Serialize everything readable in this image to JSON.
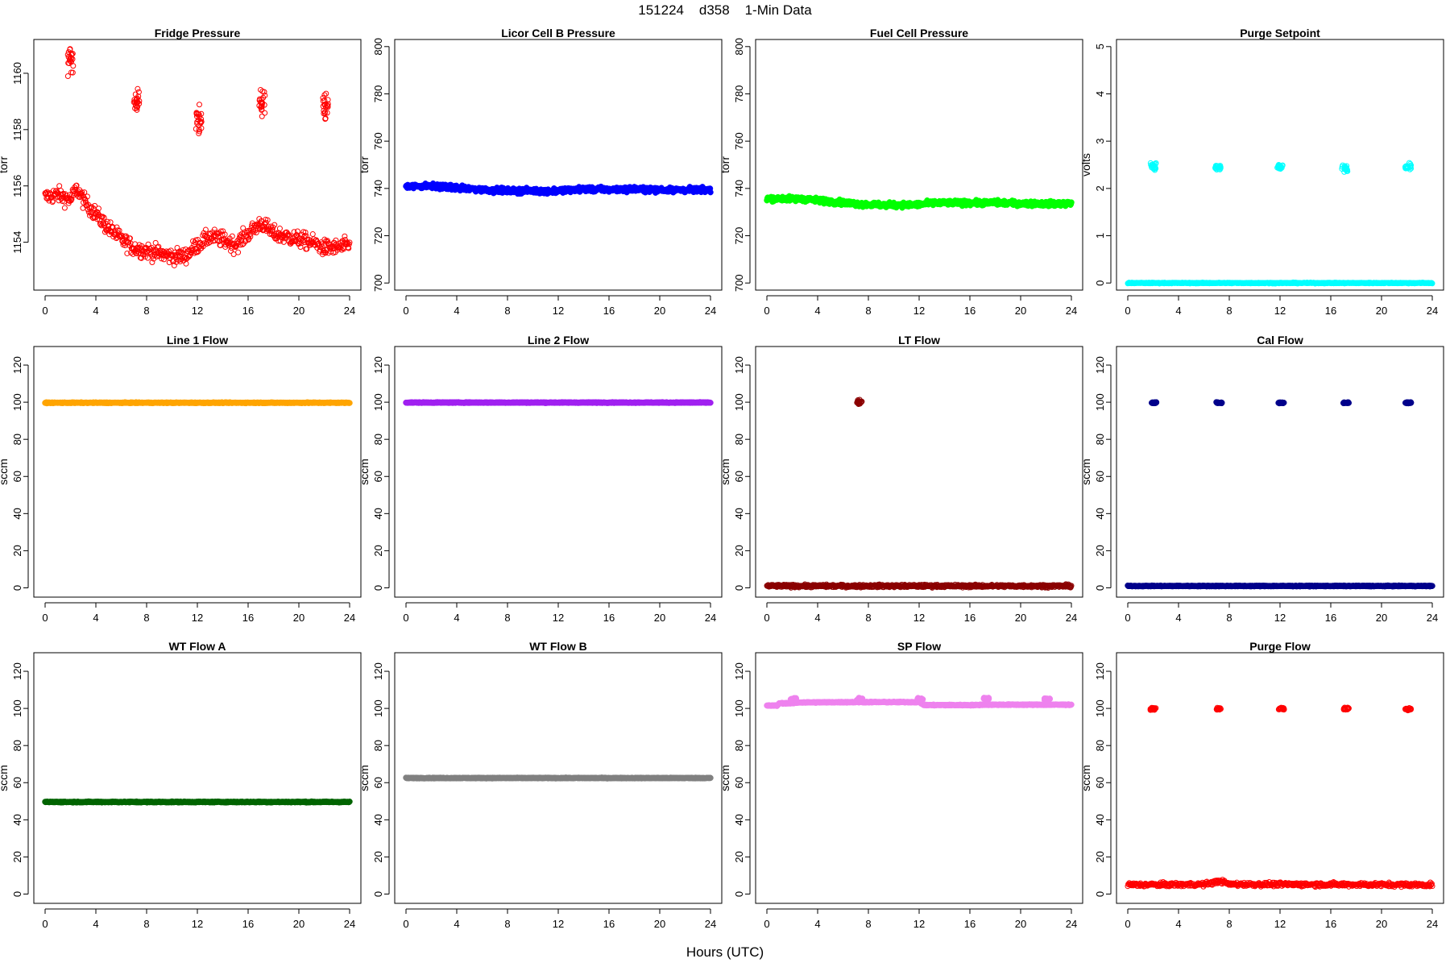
{
  "page": {
    "title": "151224    d358    1-Min Data",
    "xlabel": "Hours (UTC)"
  },
  "chart_data": [
    {
      "type": "scatter",
      "title": "Fridge Pressure",
      "ylabel": "torr",
      "color": "#ff0000",
      "marker": "open-circle",
      "xlim": [
        0,
        24
      ],
      "xticks": [
        0,
        4,
        8,
        12,
        16,
        20,
        24
      ],
      "ylim": [
        1152.3,
        1161.2
      ],
      "yticks": [
        1154,
        1156,
        1158,
        1160
      ],
      "series": [
        {
          "pattern": "trend",
          "points": [
            [
              0,
              1155.6
            ],
            [
              1,
              1155.7
            ],
            [
              2,
              1155.5
            ],
            [
              2.5,
              1155.9
            ],
            [
              3,
              1155.5
            ],
            [
              4,
              1155.0
            ],
            [
              5,
              1154.5
            ],
            [
              6,
              1154.1
            ],
            [
              7,
              1153.8
            ],
            [
              8,
              1153.7
            ],
            [
              9,
              1153.6
            ],
            [
              10,
              1153.5
            ],
            [
              11,
              1153.5
            ],
            [
              12,
              1153.9
            ],
            [
              13,
              1154.2
            ],
            [
              14,
              1154.1
            ],
            [
              15,
              1153.9
            ],
            [
              16,
              1154.3
            ],
            [
              16.8,
              1154.6
            ],
            [
              17,
              1154.7
            ],
            [
              18,
              1154.3
            ],
            [
              19,
              1154.2
            ],
            [
              20,
              1154.1
            ],
            [
              21,
              1154.0
            ],
            [
              22,
              1153.8
            ],
            [
              23,
              1153.8
            ],
            [
              24,
              1153.9
            ]
          ],
          "noise": 0.4
        },
        {
          "pattern": "cluster",
          "points": [
            [
              2.0,
              1160.4
            ],
            [
              7.2,
              1159.0
            ],
            [
              12.1,
              1158.2
            ],
            [
              17.1,
              1159.0
            ],
            [
              22.1,
              1158.8
            ]
          ],
          "spread": 0.6
        }
      ]
    },
    {
      "type": "scatter",
      "title": "Licor Cell B Pressure",
      "ylabel": "torr",
      "color": "#0000ff",
      "marker": "filled",
      "xlim": [
        0,
        24
      ],
      "xticks": [
        0,
        4,
        8,
        12,
        16,
        20,
        24
      ],
      "ylim": [
        697,
        803
      ],
      "yticks": [
        700,
        720,
        740,
        760,
        780,
        800
      ],
      "series": [
        {
          "pattern": "band",
          "points": [
            [
              0,
              741.0
            ],
            [
              2,
              741.0
            ],
            [
              4,
              740.2
            ],
            [
              6,
              739.5
            ],
            [
              8,
              739.0
            ],
            [
              10,
              739.0
            ],
            [
              11,
              738.7
            ],
            [
              12,
              739.0
            ],
            [
              14,
              739.7
            ],
            [
              16,
              739.5
            ],
            [
              18,
              739.7
            ],
            [
              20,
              739.4
            ],
            [
              22,
              739.3
            ],
            [
              24,
              739.4
            ]
          ],
          "thickness": 2
        }
      ]
    },
    {
      "type": "scatter",
      "title": "Fuel Cell Pressure",
      "ylabel": "torr",
      "color": "#00ff00",
      "marker": "filled",
      "xlim": [
        0,
        24
      ],
      "xticks": [
        0,
        4,
        8,
        12,
        16,
        20,
        24
      ],
      "ylim": [
        697,
        803
      ],
      "yticks": [
        700,
        720,
        740,
        760,
        780,
        800
      ],
      "series": [
        {
          "pattern": "band",
          "points": [
            [
              0,
              735.8
            ],
            [
              3,
              735.5
            ],
            [
              5,
              734.5
            ],
            [
              7,
              733.5
            ],
            [
              9,
              733.0
            ],
            [
              11,
              733.0
            ],
            [
              12,
              733.2
            ],
            [
              13,
              733.8
            ],
            [
              15,
              733.9
            ],
            [
              17,
              733.9
            ],
            [
              18,
              734.0
            ],
            [
              20,
              733.7
            ],
            [
              22,
              733.5
            ],
            [
              24,
              733.6
            ]
          ],
          "thickness": 2
        }
      ]
    },
    {
      "type": "scatter",
      "title": "Purge Setpoint",
      "ylabel": "volts",
      "color": "#00ffff",
      "marker": "open-circle",
      "xlim": [
        0,
        24
      ],
      "xticks": [
        0,
        4,
        8,
        12,
        16,
        20,
        24
      ],
      "ylim": [
        -0.15,
        5.15
      ],
      "yticks": [
        0,
        1,
        2,
        3,
        4,
        5
      ],
      "series": [
        {
          "pattern": "band",
          "points": [
            [
              0,
              0.0
            ],
            [
              24,
              0.0
            ]
          ],
          "thickness": 0.02
        },
        {
          "pattern": "cluster",
          "points": [
            [
              2.0,
              2.47
            ],
            [
              7.1,
              2.45
            ],
            [
              12.0,
              2.45
            ],
            [
              17.1,
              2.43
            ],
            [
              22.1,
              2.46
            ]
          ],
          "spread": 0.08
        }
      ]
    },
    {
      "type": "scatter",
      "title": "Line 1 Flow",
      "ylabel": "sccm",
      "color": "#ffa500",
      "marker": "filled",
      "xlim": [
        0,
        24
      ],
      "xticks": [
        0,
        4,
        8,
        12,
        16,
        20,
        24
      ],
      "ylim": [
        -5,
        130
      ],
      "yticks": [
        0,
        20,
        40,
        60,
        80,
        100,
        120
      ],
      "series": [
        {
          "pattern": "band",
          "points": [
            [
              0,
              99.7
            ],
            [
              24,
              99.7
            ]
          ],
          "thickness": 0.4
        }
      ]
    },
    {
      "type": "scatter",
      "title": "Line 2 Flow",
      "ylabel": "sccm",
      "color": "#a020f0",
      "marker": "filled",
      "xlim": [
        0,
        24
      ],
      "xticks": [
        0,
        4,
        8,
        12,
        16,
        20,
        24
      ],
      "ylim": [
        -5,
        130
      ],
      "yticks": [
        0,
        20,
        40,
        60,
        80,
        100,
        120
      ],
      "series": [
        {
          "pattern": "band",
          "points": [
            [
              0,
              99.8
            ],
            [
              24,
              99.8
            ]
          ],
          "thickness": 0.4
        }
      ]
    },
    {
      "type": "scatter",
      "title": "LT Flow",
      "ylabel": "sccm",
      "color": "#8b0000",
      "marker": "open-circle",
      "xlim": [
        0,
        24
      ],
      "xticks": [
        0,
        4,
        8,
        12,
        16,
        20,
        24
      ],
      "ylim": [
        -5,
        130
      ],
      "yticks": [
        0,
        20,
        40,
        60,
        80,
        100,
        120
      ],
      "series": [
        {
          "pattern": "band",
          "points": [
            [
              0,
              1.0
            ],
            [
              24,
              1.0
            ]
          ],
          "thickness": 1.5
        },
        {
          "pattern": "cluster",
          "points": [
            [
              7.3,
              99.8
            ]
          ],
          "spread": 1.5
        }
      ]
    },
    {
      "type": "scatter",
      "title": "Cal Flow",
      "ylabel": "sccm",
      "color": "#00008b",
      "marker": "filled",
      "xlim": [
        0,
        24
      ],
      "xticks": [
        0,
        4,
        8,
        12,
        16,
        20,
        24
      ],
      "ylim": [
        -5,
        130
      ],
      "yticks": [
        0,
        20,
        40,
        60,
        80,
        100,
        120
      ],
      "series": [
        {
          "pattern": "band",
          "points": [
            [
              0,
              1.0
            ],
            [
              24,
              1.0
            ]
          ],
          "thickness": 0.4
        },
        {
          "pattern": "cluster",
          "points": [
            [
              2.1,
              99.7
            ],
            [
              7.2,
              99.7
            ],
            [
              12.1,
              99.7
            ],
            [
              17.2,
              99.7
            ],
            [
              22.1,
              99.7
            ]
          ],
          "spread": 0.3
        }
      ]
    },
    {
      "type": "scatter",
      "title": "WT Flow A",
      "ylabel": "sccm",
      "color": "#006400",
      "marker": "filled",
      "xlim": [
        0,
        24
      ],
      "xticks": [
        0,
        4,
        8,
        12,
        16,
        20,
        24
      ],
      "ylim": [
        -5,
        130
      ],
      "yticks": [
        0,
        20,
        40,
        60,
        80,
        100,
        120
      ],
      "series": [
        {
          "pattern": "band",
          "points": [
            [
              0,
              49.6
            ],
            [
              24,
              49.6
            ]
          ],
          "thickness": 0.5
        }
      ]
    },
    {
      "type": "scatter",
      "title": "WT Flow B",
      "ylabel": "sccm",
      "color": "#808080",
      "marker": "filled",
      "xlim": [
        0,
        24
      ],
      "xticks": [
        0,
        4,
        8,
        12,
        16,
        20,
        24
      ],
      "ylim": [
        -5,
        130
      ],
      "yticks": [
        0,
        20,
        40,
        60,
        80,
        100,
        120
      ],
      "series": [
        {
          "pattern": "band",
          "points": [
            [
              0,
              62.5
            ],
            [
              24,
              62.5
            ]
          ],
          "thickness": 0.4
        }
      ]
    },
    {
      "type": "scatter",
      "title": "SP Flow",
      "ylabel": "sccm",
      "color": "#ee82ee",
      "marker": "filled",
      "xlim": [
        0,
        24
      ],
      "xticks": [
        0,
        4,
        8,
        12,
        16,
        20,
        24
      ],
      "ylim": [
        -5,
        130
      ],
      "yticks": [
        0,
        20,
        40,
        60,
        80,
        100,
        120
      ],
      "series": [
        {
          "pattern": "band",
          "points": [
            [
              0,
              101.5
            ],
            [
              0.8,
              101.5
            ],
            [
              1.0,
              102.8
            ],
            [
              2.0,
              102.8
            ],
            [
              2.5,
              103.2
            ],
            [
              7.0,
              103.4
            ],
            [
              7.8,
              103.4
            ],
            [
              8.0,
              103.4
            ],
            [
              12.0,
              103.4
            ],
            [
              12.4,
              101.8
            ],
            [
              16.5,
              101.8
            ],
            [
              17.0,
              102.0
            ],
            [
              17.6,
              102.0
            ],
            [
              18.0,
              102.0
            ],
            [
              24,
              102.0
            ]
          ],
          "thickness": 0.5
        },
        {
          "pattern": "cluster",
          "points": [
            [
              2.1,
              105.0
            ],
            [
              7.3,
              105.0
            ],
            [
              12.1,
              105.0
            ],
            [
              17.3,
              105.2
            ],
            [
              22.1,
              105.0
            ]
          ],
          "spread": 0.6
        }
      ]
    },
    {
      "type": "scatter",
      "title": "Purge Flow",
      "ylabel": "sccm",
      "color": "#ff0000",
      "marker": "open-circle",
      "xlim": [
        0,
        24
      ],
      "xticks": [
        0,
        4,
        8,
        12,
        16,
        20,
        24
      ],
      "ylim": [
        -5,
        130
      ],
      "yticks": [
        0,
        20,
        40,
        60,
        80,
        100,
        120
      ],
      "series": [
        {
          "pattern": "trend",
          "points": [
            [
              0,
              5.0
            ],
            [
              6,
              5.2
            ],
            [
              7.3,
              7.0
            ],
            [
              8,
              5.3
            ],
            [
              24,
              5.0
            ]
          ],
          "noise": 1.5
        },
        {
          "pattern": "cluster",
          "points": [
            [
              2.0,
              99.7
            ],
            [
              7.2,
              99.8
            ],
            [
              12.1,
              99.8
            ],
            [
              17.2,
              99.8
            ],
            [
              22.1,
              99.7
            ]
          ],
          "spread": 0.8
        }
      ]
    }
  ]
}
